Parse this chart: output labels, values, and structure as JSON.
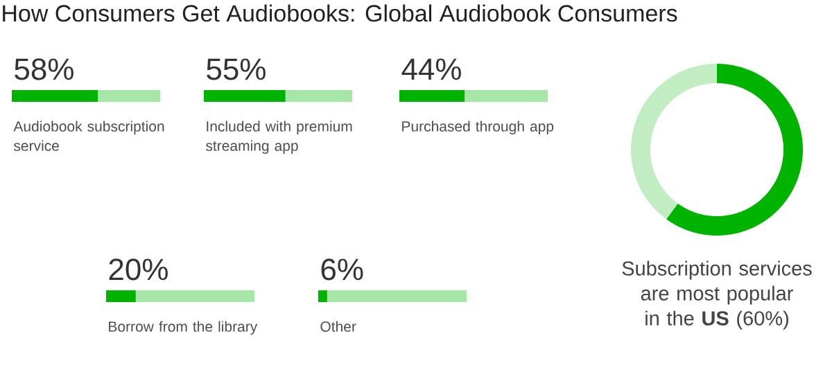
{
  "chart_data": [
    {
      "type": "bar",
      "title": "How Consumers Get Audiobooks: Global Audiobook Consumers",
      "orientation": "horizontal",
      "stacked": true,
      "categories": [
        "Audiobook subscription service"
      ],
      "series": [
        {
          "color": "#00b300",
          "values": [
            58
          ],
          "value_labels": [
            "58%"
          ]
        },
        {
          "color": "#a6e6a6",
          "values": [
            42
          ]
        }
      ]
    },
    {
      "type": "bar",
      "orientation": "horizontal",
      "stacked": true,
      "categories": [
        "Included with premium streaming app"
      ],
      "series": [
        {
          "color": "#00b300",
          "values": [
            55
          ],
          "value_labels": [
            "55%"
          ]
        },
        {
          "color": "#a6e6a6",
          "values": [
            45
          ]
        }
      ]
    },
    {
      "type": "bar",
      "orientation": "horizontal",
      "stacked": true,
      "categories": [
        "Purchased through app"
      ],
      "series": [
        {
          "color": "#00b300",
          "values": [
            44
          ],
          "value_labels": [
            "44%"
          ]
        },
        {
          "color": "#a6e6a6",
          "values": [
            56
          ]
        }
      ]
    },
    {
      "type": "bar",
      "orientation": "horizontal",
      "stacked": true,
      "categories": [
        "Borrow from the library"
      ],
      "series": [
        {
          "color": "#00b300",
          "values": [
            20
          ],
          "value_labels": [
            "20%"
          ]
        },
        {
          "color": "#a6e6a6",
          "values": [
            80
          ]
        }
      ]
    },
    {
      "type": "bar",
      "orientation": "horizontal",
      "stacked": true,
      "categories": [
        "Other"
      ],
      "series": [
        {
          "color": "#00b300",
          "values": [
            6
          ],
          "value_labels": [
            "6%"
          ]
        },
        {
          "color": "#a6e6a6",
          "values": [
            94
          ]
        }
      ]
    },
    {
      "type": "donut",
      "categories": [
        null,
        null
      ],
      "values": [
        60,
        40
      ],
      "colors": [
        "#00b300",
        "#c2ecc2"
      ],
      "annotations": [
        "Subscription services are most popular in the **US** (60%)"
      ]
    }
  ]
}
